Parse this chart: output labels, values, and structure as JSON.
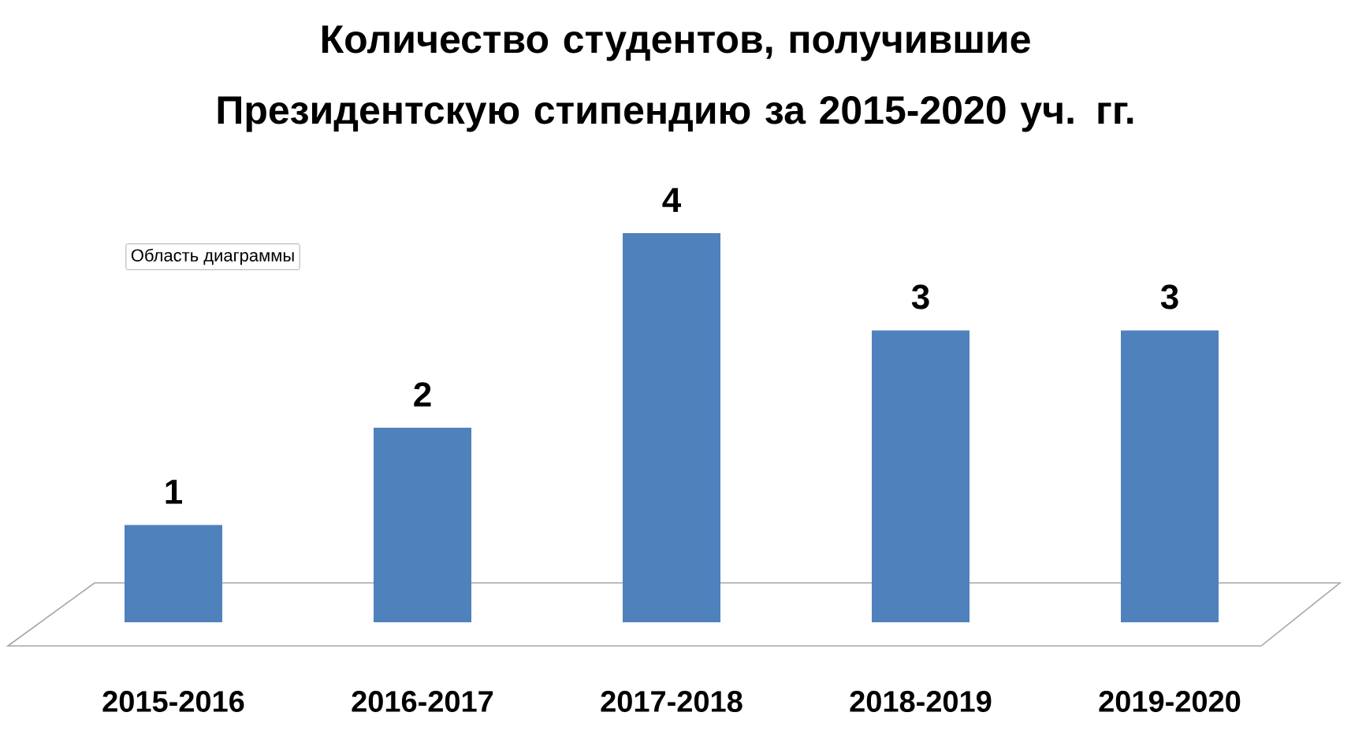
{
  "chart_data": {
    "type": "bar",
    "title": "Количество студентов, получившие Президентскую стипендию за 2015-2020 уч. гг.",
    "categories": [
      "2015-2016",
      "2016-2017",
      "2017-2018",
      "2018-2019",
      "2019-2020"
    ],
    "values": [
      1,
      2,
      4,
      3,
      3
    ],
    "color": "#4f81bd",
    "data_labels": true,
    "annotations": [
      "Область диаграммы"
    ]
  }
}
